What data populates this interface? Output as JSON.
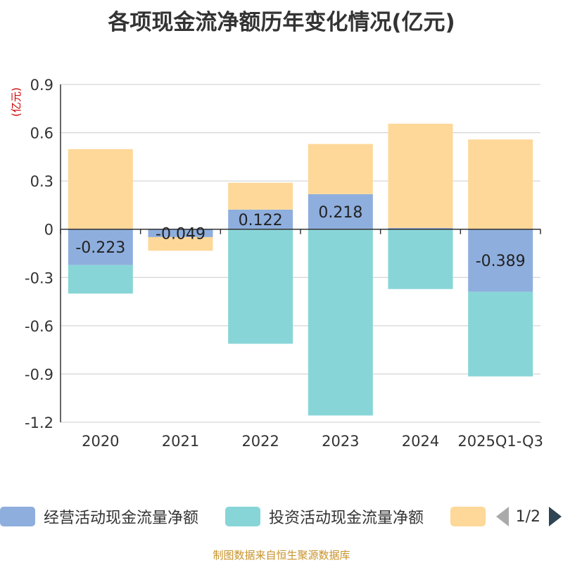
{
  "title": "各项现金流净额历年变化情况(亿元)",
  "source": "制图数据来自恒生聚源数据库",
  "pager_text": "1/2",
  "colors": {
    "operating": "#8eaedd",
    "investing": "#88d5d8",
    "financing": "#fed899"
  },
  "chart_data": {
    "type": "bar",
    "stacked": true,
    "title": "各项现金流净额历年变化情况(亿元)",
    "ylabel": "(亿元)",
    "xlabel": "",
    "ylim": [
      -1.2,
      0.9
    ],
    "yticks": [
      0.9,
      0.6,
      0.3,
      0,
      -0.3,
      -0.6,
      -0.9,
      -1.2
    ],
    "ytick_labels": [
      "0.9",
      "0.6",
      "0.3",
      "0",
      "-0.3",
      "-0.6",
      "-0.9",
      "-1.2"
    ],
    "categories": [
      "2020",
      "2021",
      "2022",
      "2023",
      "2024",
      "2025Q1-Q3"
    ],
    "series": [
      {
        "name": "经营活动现金流量净额",
        "key": "operating",
        "values": [
          -0.223,
          -0.049,
          0.122,
          0.218,
          0.008,
          -0.389
        ],
        "labels": [
          "-0.223",
          "-0.049",
          "0.122",
          "0.218",
          "",
          "-0.389"
        ]
      },
      {
        "name": "投资活动现金流量净额",
        "key": "investing",
        "values": [
          -0.177,
          0,
          -0.712,
          -1.158,
          -0.372,
          -0.526
        ]
      },
      {
        "name": "",
        "key": "financing",
        "values": [
          0.498,
          -0.085,
          0.167,
          0.312,
          0.648,
          0.558
        ]
      }
    ],
    "legend_position": "bottom"
  }
}
